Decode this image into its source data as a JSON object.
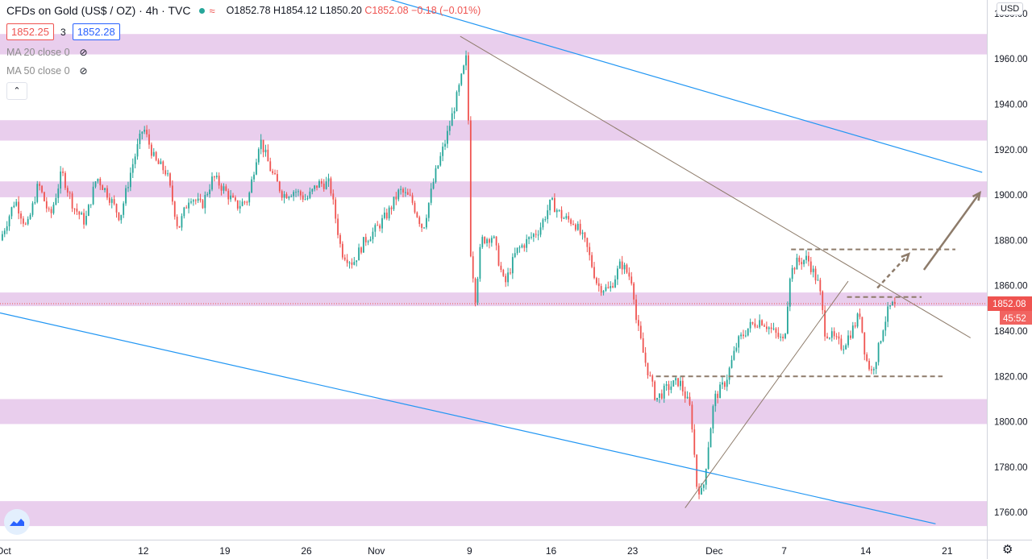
{
  "header": {
    "symbol": "CFDs on Gold (US$ / OZ)",
    "interval": "4h",
    "source": "TVC",
    "open": "O1852.78",
    "high": "H1854.12",
    "low": "L1850.20",
    "close": "C1852.08",
    "change": "−0.18 (−0.01%)"
  },
  "quote": {
    "bid": "1852.25",
    "spread": "3",
    "ask": "1852.28"
  },
  "indicators": [
    {
      "label": "MA 20 close 0"
    },
    {
      "label": "MA 50 close 0"
    }
  ],
  "axis": {
    "currency": "USD",
    "last_price": "1852.08",
    "countdown": "45:52"
  },
  "icons": {
    "collapse": "chevron-up-icon",
    "visibility": "eye-off-icon",
    "settings": "gear-icon",
    "logo": "tradingview-logo-icon"
  },
  "colors": {
    "up": "#26a69a",
    "down": "#ef5350",
    "zone": "#e1bee7",
    "channel": "#2196f3",
    "trend": "#8d7b6a"
  },
  "chart_data": {
    "type": "candlestick",
    "title": "CFDs on Gold (US$ / OZ)",
    "xlabel": "",
    "ylabel": "",
    "ylim": [
      1748,
      1986
    ],
    "y_ticks": [
      1760,
      1780,
      1800,
      1820,
      1840,
      1860,
      1880,
      1900,
      1920,
      1940,
      1960,
      1980
    ],
    "x_ticks": [
      {
        "label": "Oct",
        "day": 0
      },
      {
        "label": "12",
        "day": 12
      },
      {
        "label": "19",
        "day": 19
      },
      {
        "label": "26",
        "day": 26
      },
      {
        "label": "Nov",
        "day": 32
      },
      {
        "label": "9",
        "day": 40
      },
      {
        "label": "16",
        "day": 47
      },
      {
        "label": "23",
        "day": 54
      },
      {
        "label": "Dec",
        "day": 61
      },
      {
        "label": "7",
        "day": 67
      },
      {
        "label": "14",
        "day": 74
      },
      {
        "label": "21",
        "day": 81
      }
    ],
    "x_range_days": [
      -0.3,
      84.4
    ],
    "last_price": 1852.08,
    "price_path_days": [
      [
        -0.3,
        1880
      ],
      [
        1,
        1898
      ],
      [
        2,
        1885
      ],
      [
        3,
        1905
      ],
      [
        4,
        1890
      ],
      [
        5,
        1910
      ],
      [
        6,
        1895
      ],
      [
        7,
        1888
      ],
      [
        8,
        1908
      ],
      [
        9,
        1900
      ],
      [
        10,
        1890
      ],
      [
        11,
        1912
      ],
      [
        12,
        1930
      ],
      [
        13,
        1915
      ],
      [
        14,
        1910
      ],
      [
        15,
        1885
      ],
      [
        16,
        1900
      ],
      [
        17,
        1895
      ],
      [
        18,
        1908
      ],
      [
        19,
        1902
      ],
      [
        20,
        1895
      ],
      [
        21,
        1898
      ],
      [
        22,
        1925
      ],
      [
        23,
        1910
      ],
      [
        24,
        1900
      ],
      [
        25,
        1902
      ],
      [
        26,
        1898
      ],
      [
        27,
        1905
      ],
      [
        28,
        1905
      ],
      [
        29,
        1875
      ],
      [
        30,
        1870
      ],
      [
        31,
        1880
      ],
      [
        32,
        1885
      ],
      [
        33,
        1892
      ],
      [
        34,
        1902
      ],
      [
        35,
        1898
      ],
      [
        36,
        1885
      ],
      [
        37,
        1908
      ],
      [
        38,
        1925
      ],
      [
        39,
        1945
      ],
      [
        39.8,
        1962
      ],
      [
        40.1,
        1875
      ],
      [
        40.5,
        1855
      ],
      [
        41,
        1880
      ],
      [
        42,
        1882
      ],
      [
        43,
        1860
      ],
      [
        44,
        1875
      ],
      [
        45,
        1880
      ],
      [
        46,
        1885
      ],
      [
        47,
        1897
      ],
      [
        48,
        1890
      ],
      [
        49,
        1888
      ],
      [
        50,
        1878
      ],
      [
        51,
        1860
      ],
      [
        52,
        1858
      ],
      [
        53,
        1870
      ],
      [
        54,
        1862
      ],
      [
        54.3,
        1845
      ],
      [
        55,
        1828
      ],
      [
        56,
        1810
      ],
      [
        57,
        1815
      ],
      [
        58,
        1818
      ],
      [
        59,
        1805
      ],
      [
        59.5,
        1772
      ],
      [
        60,
        1768
      ],
      [
        60.5,
        1790
      ],
      [
        61,
        1810
      ],
      [
        62,
        1818
      ],
      [
        63,
        1835
      ],
      [
        64,
        1842
      ],
      [
        65,
        1845
      ],
      [
        66,
        1840
      ],
      [
        67,
        1835
      ],
      [
        67.5,
        1865
      ],
      [
        68,
        1870
      ],
      [
        69,
        1872
      ],
      [
        70,
        1860
      ],
      [
        70.5,
        1840
      ],
      [
        71,
        1838
      ],
      [
        72,
        1833
      ],
      [
        73,
        1842
      ],
      [
        73.5,
        1848
      ],
      [
        74,
        1828
      ],
      [
        74.5,
        1822
      ],
      [
        75,
        1830
      ],
      [
        75.5,
        1842
      ],
      [
        76,
        1850
      ],
      [
        76.5,
        1852.08
      ]
    ],
    "zones": [
      [
        1962,
        1971
      ],
      [
        1924,
        1933
      ],
      [
        1899,
        1906
      ],
      [
        1851,
        1857
      ],
      [
        1799,
        1810
      ],
      [
        1754,
        1765
      ]
    ],
    "channel_lines": [
      {
        "from": [
          26,
          1997
        ],
        "to": [
          84,
          1910
        ]
      },
      {
        "from": [
          -0.3,
          1848
        ],
        "to": [
          80,
          1755
        ]
      }
    ],
    "trend_lines": [
      {
        "from": [
          39.2,
          1970
        ],
        "to": [
          83,
          1837
        ]
      },
      {
        "from": [
          58.5,
          1762
        ],
        "to": [
          72.5,
          1862
        ]
      }
    ],
    "levels": [
      {
        "from": [
          56,
          1820
        ],
        "to": [
          80.6,
          1820
        ]
      },
      {
        "from": [
          67.6,
          1876
        ],
        "to": [
          81.7,
          1876
        ]
      },
      {
        "from": [
          72.4,
          1855
        ],
        "to": [
          78.8,
          1855
        ]
      }
    ],
    "arrows": [
      {
        "from": [
          79,
          1867
        ],
        "to": [
          83.8,
          1901
        ],
        "style": "solid"
      },
      {
        "from": [
          75,
          1859
        ],
        "to": [
          77.7,
          1874
        ],
        "style": "dashed"
      }
    ]
  }
}
